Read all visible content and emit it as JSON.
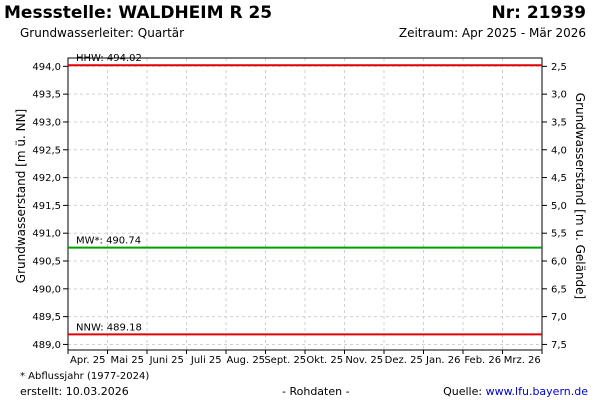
{
  "header": {
    "title": "Messstelle: WALDHEIM R 25",
    "number": "Nr: 21939",
    "aquifer": "Grundwasserleiter: Quartär",
    "period": "Zeitraum: Apr 2025 - Mär 2026"
  },
  "footer": {
    "footnote": "* Abflussjahr (1977-2024)",
    "created": "erstellt:  10.03.2026",
    "rawdata": "- Rohdaten -",
    "source_label": "Quelle: ",
    "source_url": "www.lfu.bayern.de"
  },
  "chart_data": {
    "type": "line",
    "ylabel": "Grundwasserstand [m ü. NN]",
    "y2label": "Grundwasserstand [m u. Gelände]",
    "ylim": [
      488.9,
      494.15
    ],
    "yticks": [
      "494,0",
      "493,5",
      "493,0",
      "492,5",
      "492,0",
      "491,5",
      "491,0",
      "490,5",
      "490,0",
      "489,5",
      "489,0"
    ],
    "ytick_values": [
      494.0,
      493.5,
      493.0,
      492.5,
      492.0,
      491.5,
      491.0,
      490.5,
      490.0,
      489.5,
      489.0
    ],
    "y2ticks": [
      "2,5",
      "3,0",
      "3,5",
      "4,0",
      "4,5",
      "5,0",
      "5,5",
      "6,0",
      "6,5",
      "7,0",
      "7,5"
    ],
    "y2_offset": 496.5,
    "xticks": [
      "Apr. 25",
      "Mai 25",
      "Juni 25",
      "Juli 25",
      "Aug. 25",
      "Sept. 25",
      "Okt. 25",
      "Nov. 25",
      "Dez. 25",
      "Jan. 26",
      "Feb. 26",
      "Mrz. 26"
    ],
    "grid": true,
    "reference_lines": [
      {
        "label": "HHW: 494.02",
        "value": 494.02,
        "color": "#e00000"
      },
      {
        "label": "MW*: 490.74",
        "value": 490.74,
        "color": "#00a000"
      },
      {
        "label": "NNW: 489.18",
        "value": 489.18,
        "color": "#e00000"
      }
    ],
    "series": []
  }
}
